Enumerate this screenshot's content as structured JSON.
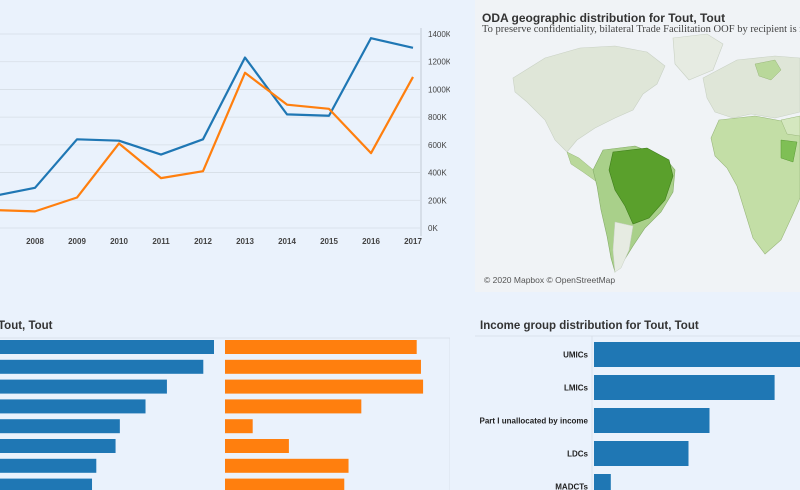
{
  "colors": {
    "blue": "#1f77b4",
    "orange": "#ff7f0e",
    "grid": "#d6dde6",
    "axis_text": "#444444",
    "map_land": "#dfe6d8",
    "map_ocean": "#f0f3f6"
  },
  "map": {
    "title": "ODA geographic distribution for Tout, Tout",
    "subtitle": "To preserve confidentiality, bilateral Trade Facilitation OOF by recipient is n",
    "attribution": "© 2020 Mapbox © OpenStreetMap"
  },
  "bars_panel": {
    "title": "Tout, Tout"
  },
  "income_panel": {
    "title": "Income group distribution for Tout, Tout"
  },
  "chart_data": [
    {
      "type": "line",
      "title": "",
      "xlabel": "",
      "ylabel": "",
      "x": [
        "2008",
        "2009",
        "2010",
        "2011",
        "2012",
        "2013",
        "2014",
        "2015",
        "2016",
        "2017"
      ],
      "x_start": "2007",
      "y_tick_labels": [
        "0K",
        "200K",
        "400K",
        "600K",
        "800K",
        "1000K",
        "1200K",
        "1400K"
      ],
      "ylim": [
        0,
        1400000
      ],
      "grid": true,
      "series": [
        {
          "color": "#1f77b4",
          "values_from_2007": [
            230000,
            290000,
            640000,
            630000,
            530000,
            640000,
            1230000,
            820000,
            810000,
            1370000,
            1300000
          ]
        },
        {
          "color": "#ff7f0e",
          "values_from_2007": [
            130000,
            120000,
            220000,
            610000,
            360000,
            410000,
            1120000,
            890000,
            860000,
            540000,
            1090000
          ]
        }
      ]
    },
    {
      "type": "bar",
      "orientation": "horizontal",
      "title": "Tout, Tout",
      "series": [
        {
          "color": "#1f77b4",
          "values": [
            100,
            95,
            78,
            68,
            56,
            54,
            45,
            43
          ]
        },
        {
          "color": "#ff7f0e",
          "values": [
            90,
            92,
            93,
            64,
            13,
            30,
            58,
            56
          ]
        }
      ]
    },
    {
      "type": "bar",
      "orientation": "horizontal",
      "title": "Income group distribution for Tout, Tout",
      "categories": [
        "UMICs",
        "LMICs",
        "Part I unallocated by income",
        "LDCs",
        "MADCTs"
      ],
      "values": [
        100,
        86,
        55,
        45,
        8
      ]
    }
  ]
}
